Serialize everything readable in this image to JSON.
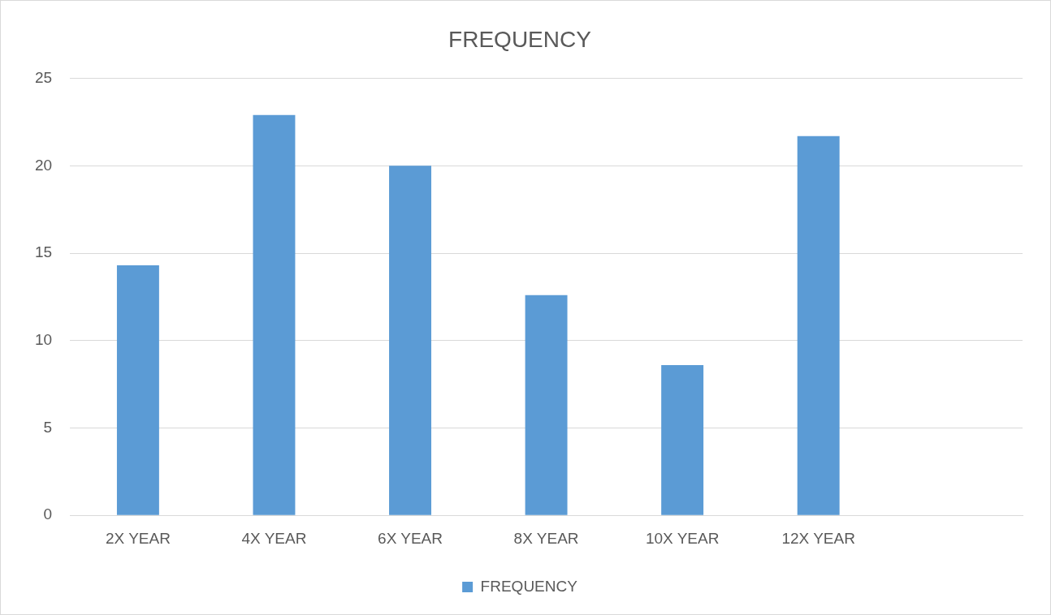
{
  "chart_data": {
    "type": "bar",
    "title": "FREQUENCY",
    "categories": [
      "2X YEAR",
      "4X YEAR",
      "6X YEAR",
      "8X YEAR",
      "10X YEAR",
      "12X YEAR",
      null
    ],
    "series": [
      {
        "name": "FREQUENCY",
        "color": "#5b9bd5",
        "values": [
          14.3,
          22.9,
          20.0,
          12.6,
          8.6,
          21.7,
          null
        ]
      }
    ],
    "ylim": [
      0,
      25
    ],
    "yticks": [
      0,
      5,
      10,
      15,
      20,
      25
    ],
    "grid": "y",
    "legend": "bottom"
  }
}
